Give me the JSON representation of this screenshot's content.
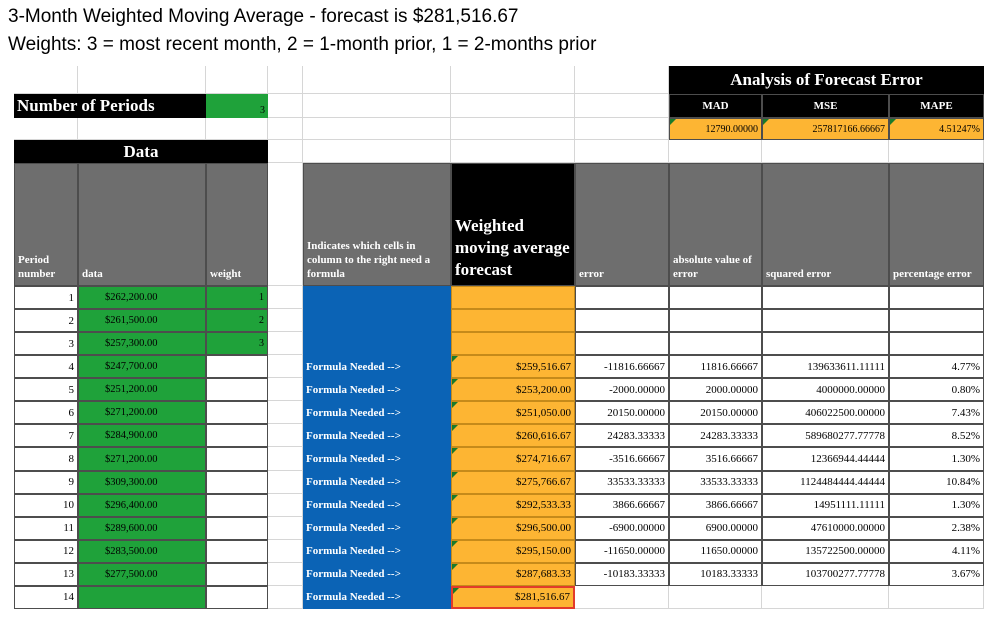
{
  "caption": {
    "title": "3-Month Weighted Moving Average - forecast is $281,516.67",
    "weights": "Weights: 3 = most recent month, 2 = 1-month prior, 1 = 2-months prior"
  },
  "analysis": {
    "title": "Analysis of Forecast Error",
    "headers": [
      "MAD",
      "MSE",
      "MAPE"
    ],
    "values": [
      "12790.00000",
      "257817166.66667",
      "4.51247%"
    ]
  },
  "params": {
    "num_periods_label": "Number of Periods",
    "num_periods_value": "3"
  },
  "data_section_title": "Data",
  "headers": {
    "period": "Period number",
    "data": "data",
    "weight": "weight",
    "indicates": "Indicates which cells in column to the right need a formula",
    "forecast": "Weighted moving average forecast",
    "error": "error",
    "abs_error": "absolute value of error",
    "sq_error": "squared error",
    "pct_error": "percentage error"
  },
  "rows": [
    {
      "period": "1",
      "data": "$262,200.00",
      "weight": "1",
      "note": "",
      "forecast": "",
      "error": "",
      "abs": "",
      "sq": "",
      "pct": ""
    },
    {
      "period": "2",
      "data": "$261,500.00",
      "weight": "2",
      "note": "",
      "forecast": "",
      "error": "",
      "abs": "",
      "sq": "",
      "pct": ""
    },
    {
      "period": "3",
      "data": "$257,300.00",
      "weight": "3",
      "note": "",
      "forecast": "",
      "error": "",
      "abs": "",
      "sq": "",
      "pct": ""
    },
    {
      "period": "4",
      "data": "$247,700.00",
      "weight": "",
      "note": "Formula Needed -->",
      "forecast": "$259,516.67",
      "error": "-11816.66667",
      "abs": "11816.66667",
      "sq": "139633611.11111",
      "pct": "4.77%"
    },
    {
      "period": "5",
      "data": "$251,200.00",
      "weight": "",
      "note": "Formula Needed -->",
      "forecast": "$253,200.00",
      "error": "-2000.00000",
      "abs": "2000.00000",
      "sq": "4000000.00000",
      "pct": "0.80%"
    },
    {
      "period": "6",
      "data": "$271,200.00",
      "weight": "",
      "note": "Formula Needed -->",
      "forecast": "$251,050.00",
      "error": "20150.00000",
      "abs": "20150.00000",
      "sq": "406022500.00000",
      "pct": "7.43%"
    },
    {
      "period": "7",
      "data": "$284,900.00",
      "weight": "",
      "note": "Formula Needed -->",
      "forecast": "$260,616.67",
      "error": "24283.33333",
      "abs": "24283.33333",
      "sq": "589680277.77778",
      "pct": "8.52%"
    },
    {
      "period": "8",
      "data": "$271,200.00",
      "weight": "",
      "note": "Formula Needed -->",
      "forecast": "$274,716.67",
      "error": "-3516.66667",
      "abs": "3516.66667",
      "sq": "12366944.44444",
      "pct": "1.30%"
    },
    {
      "period": "9",
      "data": "$309,300.00",
      "weight": "",
      "note": "Formula Needed -->",
      "forecast": "$275,766.67",
      "error": "33533.33333",
      "abs": "33533.33333",
      "sq": "1124484444.44444",
      "pct": "10.84%"
    },
    {
      "period": "10",
      "data": "$296,400.00",
      "weight": "",
      "note": "Formula Needed -->",
      "forecast": "$292,533.33",
      "error": "3866.66667",
      "abs": "3866.66667",
      "sq": "14951111.11111",
      "pct": "1.30%"
    },
    {
      "period": "11",
      "data": "$289,600.00",
      "weight": "",
      "note": "Formula Needed -->",
      "forecast": "$296,500.00",
      "error": "-6900.00000",
      "abs": "6900.00000",
      "sq": "47610000.00000",
      "pct": "2.38%"
    },
    {
      "period": "12",
      "data": "$283,500.00",
      "weight": "",
      "note": "Formula Needed -->",
      "forecast": "$295,150.00",
      "error": "-11650.00000",
      "abs": "11650.00000",
      "sq": "135722500.00000",
      "pct": "4.11%"
    },
    {
      "period": "13",
      "data": "$277,500.00",
      "weight": "",
      "note": "Formula Needed -->",
      "forecast": "$287,683.33",
      "error": "-10183.33333",
      "abs": "10183.33333",
      "sq": "103700277.77778",
      "pct": "3.67%"
    },
    {
      "period": "14",
      "data": "",
      "weight": "",
      "note": "Formula Needed -->",
      "forecast": "$281,516.67",
      "error": "",
      "abs": "",
      "sq": "",
      "pct": ""
    }
  ]
}
